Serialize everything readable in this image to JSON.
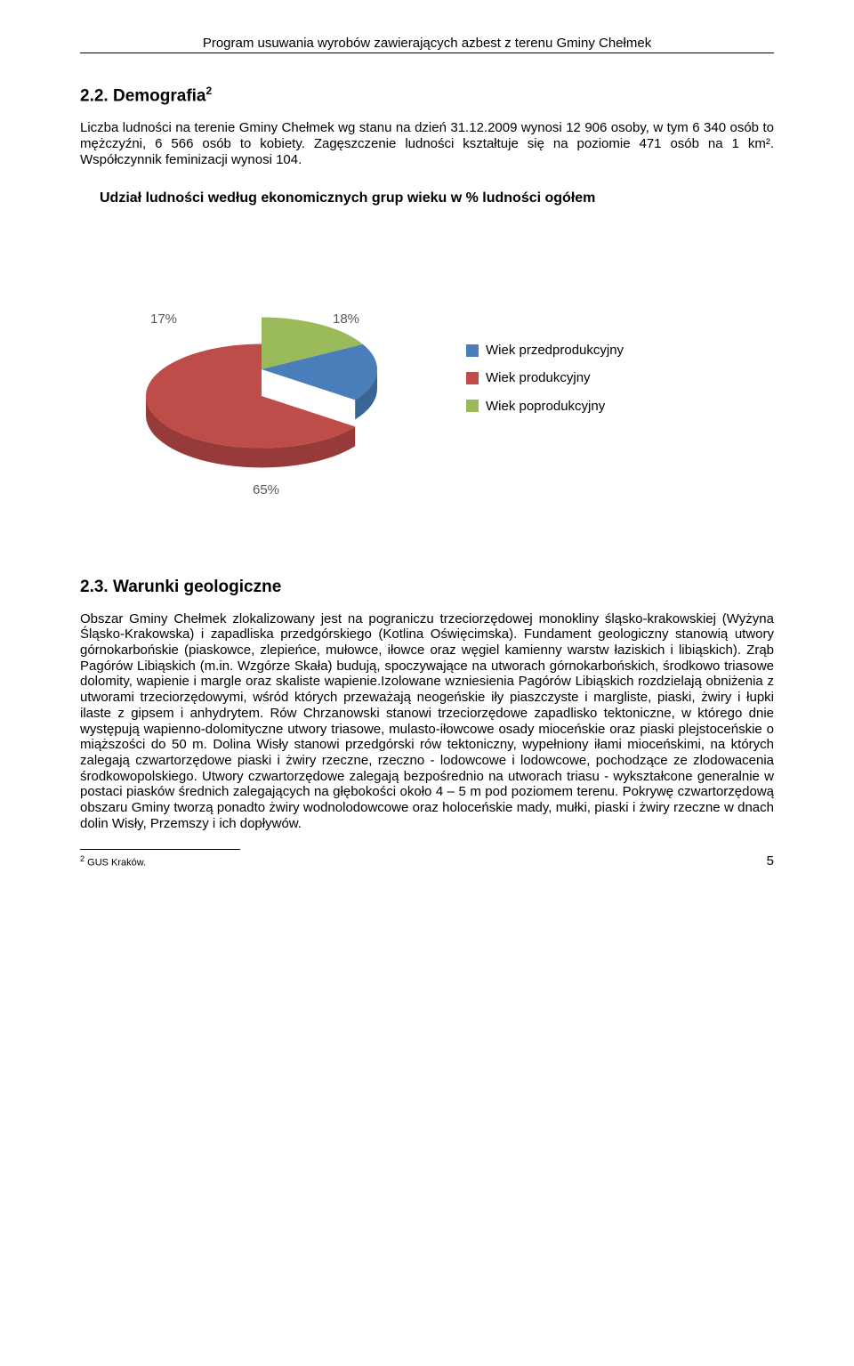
{
  "header": {
    "title": "Program usuwania wyrobów zawierających azbest z terenu Gminy Chełmek"
  },
  "section_demografia": {
    "heading": "2.2. Demografia",
    "footnote_mark": "2",
    "paragraph": "Liczba ludności na terenie Gminy Chełmek wg stanu na dzień 31.12.2009 wynosi 12 906 osoby, w tym 6 340 osób to mężczyźni, 6 566 osób to kobiety. Zagęszczenie ludności kształtuje się na poziomie 471 osób na 1 km². Współczynnik feminizacji wynosi 104."
  },
  "chart": {
    "type": "pie-3d-exploded",
    "title": "Udział ludności według ekonomicznych grup wieku w % ludności ogółem",
    "background_color": "#ffffff",
    "slices": [
      {
        "label": "Wiek przedprodukcyjny",
        "value": 18,
        "pct_label": "18%",
        "color": "#4a7ebb",
        "side_color": "#3b6595"
      },
      {
        "label": "Wiek produkcyjny",
        "value": 65,
        "pct_label": "65%",
        "color": "#be4c49",
        "side_color": "#963b3a"
      },
      {
        "label": "Wiek poprodukcyjny",
        "value": 17,
        "pct_label": "17%",
        "color": "#9bba59",
        "side_color": "#7b9346"
      }
    ],
    "label_fontsize": 15,
    "label_color": "#595959",
    "legend_fontsize": 15,
    "explode_gap": 30,
    "tilt_ratio": 0.45
  },
  "section_geologia": {
    "heading": "2.3. Warunki geologiczne",
    "paragraph": "Obszar Gminy Chełmek zlokalizowany jest na pograniczu trzeciorzędowej monokliny śląsko-krakowskiej (Wyżyna Śląsko-Krakowska) i zapadliska przedgórskiego (Kotlina Oświęcimska). Fundament geologiczny stanowią utwory górnokarbońskie (piaskowce, zlepieńce, mułowce, iłowce oraz węgiel kamienny warstw łaziskich i libiąskich). Zrąb Pagórów Libiąskich (m.in. Wzgórze Skała) budują, spoczywające na utworach górnokarbońskich, środkowo triasowe dolomity, wapienie i margle oraz skaliste wapienie.Izolowane wzniesienia Pagórów Libiąskich rozdzielają obniżenia z utworami trzeciorzędowymi, wśród których przeważają neogeńskie iły piaszczyste i margliste, piaski, żwiry i łupki ilaste z gipsem i anhydrytem. Rów Chrzanowski stanowi trzeciorzędowe zapadlisko tektoniczne, w którego dnie występują wapienno-dolomityczne utwory triasowe, mulasto-iłowcowe osady mioceńskie oraz piaski plejstoceńskie o miąższości do 50 m. Dolina Wisły stanowi przedgórski rów tektoniczny, wypełniony iłami mioceńskimi, na których zalegają czwartorzędowe piaski i żwiry rzeczne, rzeczno - lodowcowe i lodowcowe, pochodzące ze zlodowacenia środkowopolskiego. Utwory czwartorzędowe zalegają bezpośrednio na utworach triasu  - wykształcone generalnie w postaci piasków średnich zalegających na głębokości około 4 – 5 m pod poziomem terenu. Pokrywę czwartorzędową obszaru Gminy tworzą ponadto żwiry wodnolodowcowe oraz holoceńskie mady, mułki, piaski i żwiry rzeczne w dnach dolin Wisły, Przemszy i ich dopływów."
  },
  "footnote": {
    "mark": "2",
    "text": " GUS Kraków."
  },
  "page_number": "5"
}
